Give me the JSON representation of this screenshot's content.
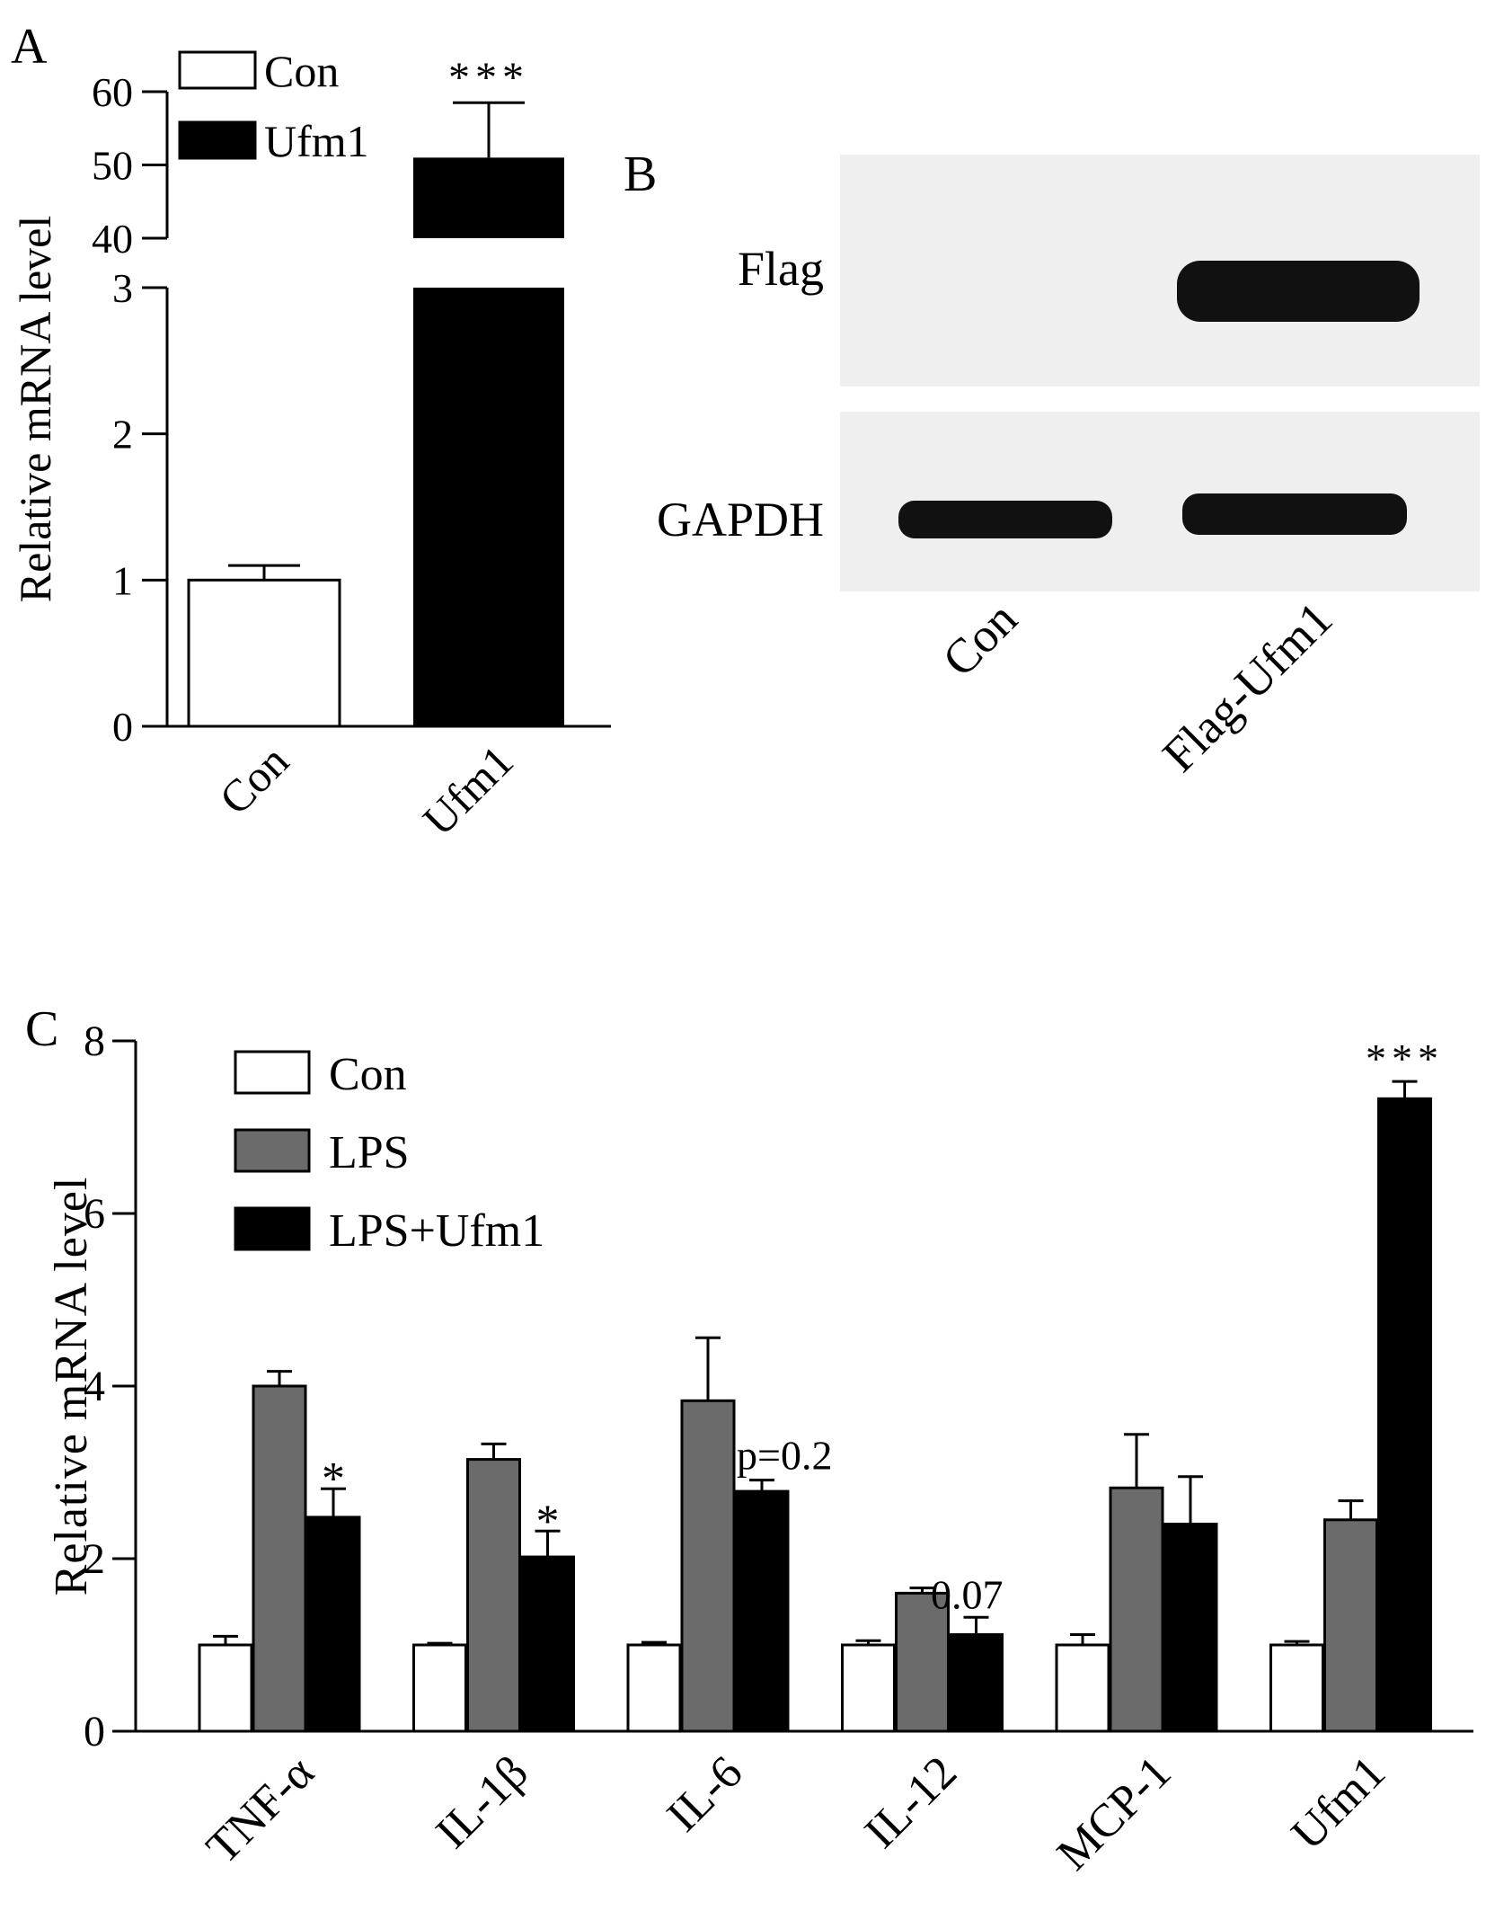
{
  "panels": {
    "a": {
      "letter": "A"
    },
    "b": {
      "letter": "B"
    },
    "c": {
      "letter": "C"
    }
  },
  "chart_data": [
    {
      "panel": "A",
      "type": "bar",
      "categories": [
        "Con",
        "Ufm1"
      ],
      "series": [
        {
          "name": "Con",
          "values": [
            1.0,
            null
          ],
          "errors": [
            0.1,
            null
          ],
          "color": "#ffffff"
        },
        {
          "name": "Ufm1",
          "values": [
            null,
            51
          ],
          "errors": [
            null,
            7.5
          ],
          "color": "#000000"
        }
      ],
      "ylabel": "Relative mRNA level",
      "ylim_lower": [
        0,
        3
      ],
      "ylim_upper": [
        40,
        60
      ],
      "y_ticks_lower": [
        "0",
        "1",
        "2",
        "3"
      ],
      "y_ticks_upper": [
        "40",
        "50",
        "60"
      ],
      "axis_break": true,
      "annotations": [
        {
          "category": "Ufm1",
          "text": "***"
        }
      ],
      "legend": {
        "position": "top-left",
        "entries": [
          "Con",
          "Ufm1"
        ]
      },
      "grid": false
    },
    {
      "panel": "C",
      "type": "bar",
      "categories": [
        "TNF-α",
        "IL-1β",
        "IL-6",
        "IL-12",
        "MCP-1",
        "Ufm1"
      ],
      "series": [
        {
          "name": "Con",
          "values": [
            1.0,
            1.0,
            1.0,
            1.0,
            1.0,
            1.0
          ],
          "errors": [
            0.1,
            0.02,
            0.03,
            0.05,
            0.12,
            0.04
          ],
          "color": "#ffffff"
        },
        {
          "name": "LPS",
          "values": [
            4.0,
            3.15,
            3.83,
            1.6,
            2.82,
            2.45
          ],
          "errors": [
            0.17,
            0.18,
            0.73,
            0.06,
            0.62,
            0.22
          ],
          "color": "#6b6b6b"
        },
        {
          "name": "LPS+Ufm1",
          "values": [
            2.48,
            2.02,
            2.78,
            1.12,
            2.4,
            7.33
          ],
          "errors": [
            0.33,
            0.3,
            0.13,
            0.2,
            0.55,
            0.2
          ],
          "color": "#000000"
        }
      ],
      "ylabel": "Relative mRNA level",
      "ylim": [
        0,
        8
      ],
      "y_ticks": [
        "0",
        "2",
        "4",
        "6",
        "8"
      ],
      "annotations": [
        {
          "category": "TNF-α",
          "series": "LPS+Ufm1",
          "text": "*"
        },
        {
          "category": "IL-1β",
          "series": "LPS+Ufm1",
          "text": "*"
        },
        {
          "category": "IL-6",
          "series": "LPS+Ufm1",
          "text": "p=0.2"
        },
        {
          "category": "IL-12",
          "series": "LPS+Ufm1",
          "text": "0.07"
        },
        {
          "category": "Ufm1",
          "series": "LPS+Ufm1",
          "text": "***"
        }
      ],
      "legend": {
        "position": "top-left",
        "entries": [
          "Con",
          "LPS",
          "LPS+Ufm1"
        ]
      },
      "grid": false
    }
  ],
  "blot": {
    "type": "western-blot",
    "rows": [
      "Flag",
      "GAPDH"
    ],
    "lanes": [
      "Con",
      "Flag-Ufm1"
    ]
  }
}
